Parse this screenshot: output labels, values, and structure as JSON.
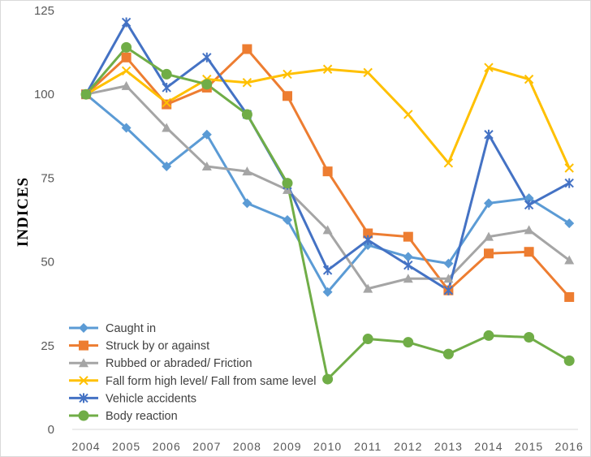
{
  "chart_data": {
    "type": "line",
    "title": "",
    "xlabel": "",
    "ylabel": "INDICES",
    "ylim": [
      0,
      125
    ],
    "yticks": [
      0,
      25,
      50,
      75,
      100,
      125
    ],
    "grid": false,
    "legend_position": "bottom-left",
    "categories": [
      "2004",
      "2005",
      "2006",
      "2007",
      "2008",
      "2009",
      "2010",
      "2011",
      "2012",
      "2013",
      "2014",
      "2015",
      "2016"
    ],
    "series": [
      {
        "name": "Caught in",
        "color": "#5B9BD5",
        "marker": "diamond",
        "values": [
          100,
          90,
          78.5,
          88,
          67.5,
          62.5,
          41,
          55,
          51.5,
          49.5,
          67.5,
          69,
          61.5
        ]
      },
      {
        "name": "Struck by or against",
        "color": "#ED7D31",
        "marker": "square",
        "values": [
          100,
          111,
          97,
          102,
          113.5,
          99.5,
          77,
          58.5,
          57.5,
          41.5,
          52.5,
          53,
          39.5
        ]
      },
      {
        "name": "Rubbed or abraded/ Friction",
        "color": "#A5A5A5",
        "marker": "triangle",
        "values": [
          100,
          102.5,
          90,
          78.5,
          77,
          71.5,
          59.5,
          42,
          45,
          45,
          57.5,
          59.5,
          50.5
        ]
      },
      {
        "name": "Fall form high level/ Fall from same level",
        "color": "#FFC000",
        "marker": "x",
        "values": [
          100,
          107,
          97.5,
          104.5,
          103.5,
          106,
          107.5,
          106.5,
          94,
          79.5,
          108,
          104.5,
          78
        ]
      },
      {
        "name": "Vehicle accidents",
        "color": "#4472C4",
        "marker": "star",
        "values": [
          100,
          121.5,
          102,
          111,
          94,
          73,
          47.5,
          56.5,
          49,
          41.5,
          88,
          67,
          73.5
        ]
      },
      {
        "name": "Body reaction",
        "color": "#70AD47",
        "marker": "circle",
        "values": [
          100,
          114,
          106,
          103,
          94,
          73.5,
          15,
          27,
          26,
          22.5,
          28,
          27.5,
          20.5
        ]
      }
    ]
  }
}
